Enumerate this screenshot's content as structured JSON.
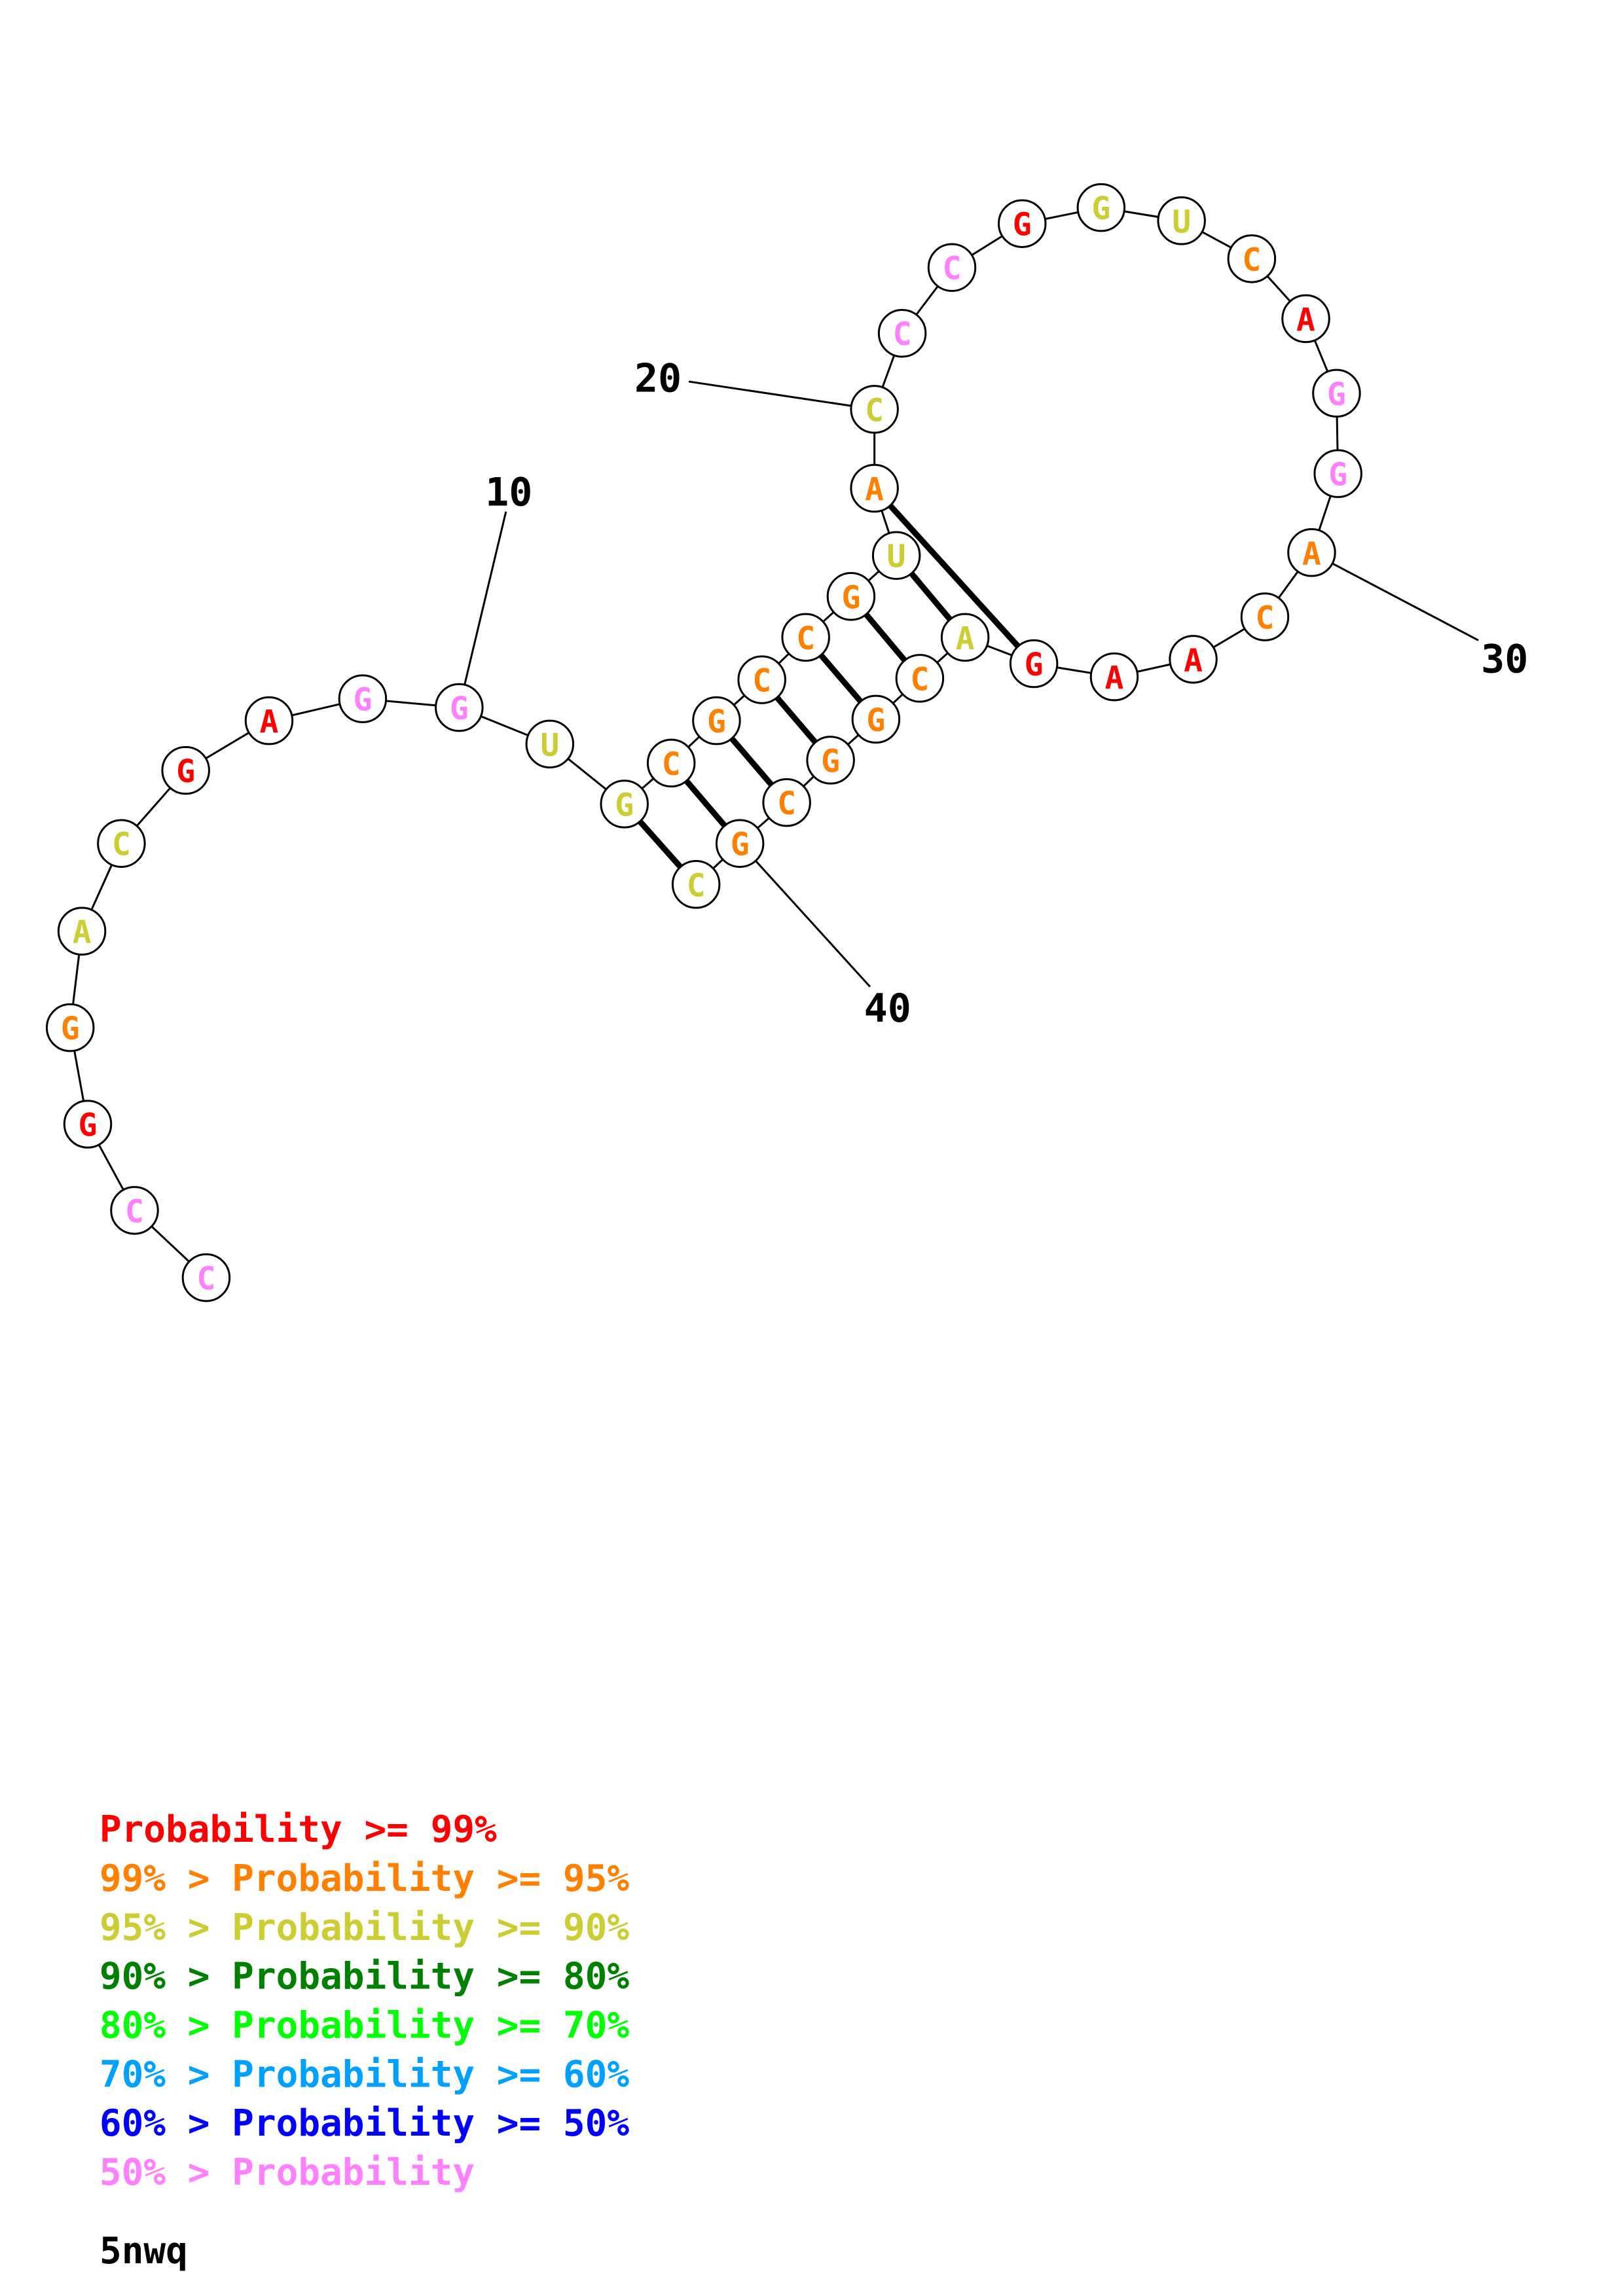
{
  "structure_id": "5nwq",
  "sequence": [
    "C",
    "C",
    "G",
    "G",
    "A",
    "C",
    "G",
    "A",
    "G",
    "G",
    "U",
    "G",
    "C",
    "G",
    "C",
    "C",
    "G",
    "U",
    "A",
    "C",
    "C",
    "C",
    "G",
    "G",
    "U",
    "C",
    "A",
    "G",
    "G",
    "A",
    "C",
    "A",
    "A",
    "G",
    "A",
    "C",
    "G",
    "G",
    "C",
    "G",
    "C"
  ],
  "probability_class": [
    7,
    7,
    0,
    1,
    2,
    2,
    0,
    0,
    7,
    7,
    2,
    2,
    1,
    1,
    1,
    1,
    1,
    2,
    1,
    2,
    7,
    7,
    0,
    2,
    2,
    1,
    0,
    7,
    7,
    1,
    1,
    0,
    0,
    0,
    2,
    1,
    1,
    1,
    1,
    1,
    2
  ],
  "base_pairs": [
    [
      12,
      41
    ],
    [
      13,
      40
    ],
    [
      14,
      39
    ],
    [
      15,
      38
    ],
    [
      16,
      37
    ],
    [
      17,
      36
    ],
    [
      18,
      35
    ],
    [
      19,
      34
    ]
  ],
  "position_labels": [
    {
      "index": 10,
      "text": "10"
    },
    {
      "index": 20,
      "text": "20"
    },
    {
      "index": 30,
      "text": "30"
    },
    {
      "index": 40,
      "text": "40"
    }
  ],
  "colors": {
    "red": "#ff0000",
    "orange": "#ff8000",
    "olive": "#cccc33",
    "dark_green": "#008000",
    "green": "#00ff00",
    "cyan": "#00a0ff",
    "blue": "#0000ff",
    "pink": "#ff80ff",
    "black": "#000000"
  },
  "class_colors": [
    "#ff0000",
    "#ff8000",
    "#cccc33",
    "#008000",
    "#00ff00",
    "#00a0ff",
    "#0000ff",
    "#ff80ff"
  ],
  "legend": [
    {
      "prefix": "",
      "label": "Probability >= 99%",
      "color": "#ff0000"
    },
    {
      "prefix": "99% > ",
      "label": "Probability >= 95%",
      "color": "#ff8000"
    },
    {
      "prefix": "95% > ",
      "label": "Probability >= 90%",
      "color": "#cccc33"
    },
    {
      "prefix": "90% > ",
      "label": "Probability >= 80%",
      "color": "#008000"
    },
    {
      "prefix": "80% > ",
      "label": "Probability >= 70%",
      "color": "#00ff00"
    },
    {
      "prefix": "70% > ",
      "label": "Probability >= 60%",
      "color": "#00a0ff"
    },
    {
      "prefix": "60% > ",
      "label": "Probability >= 50%",
      "color": "#0000ff"
    },
    {
      "prefix": "50% > ",
      "label": "Probability",
      "color": "#ff80ff"
    }
  ]
}
